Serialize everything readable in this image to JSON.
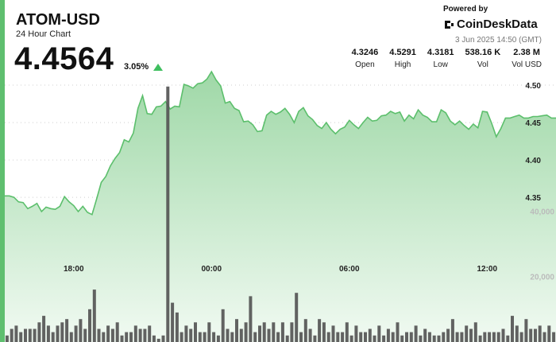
{
  "header": {
    "title": "ATOM-USD",
    "subtitle": "24 Hour Chart",
    "price": "4.4564",
    "change": "3.05%",
    "powered_by": "Powered by",
    "brand": "CoinDeskData",
    "timestamp": "3 Jun 2025 14:50 (GMT)"
  },
  "stats": [
    {
      "value": "4.3246",
      "label": "Open"
    },
    {
      "value": "4.5291",
      "label": "High"
    },
    {
      "value": "4.3181",
      "label": "Low"
    },
    {
      "value": "538.16 K",
      "label": "Vol"
    },
    {
      "value": "2.38 M",
      "label": "Vol USD"
    }
  ],
  "colors": {
    "accent": "#5fbf6f",
    "line": "#5cbf6c",
    "fill_top": "#9fd8a7",
    "fill_bottom": "#f1faf2",
    "volume": "#555555",
    "arrow": "#3fbf5f"
  },
  "chart_data": {
    "type": "area",
    "price_axis": {
      "ticks": [
        "4.50",
        "4.45",
        "4.40",
        "4.35"
      ],
      "tick_values": [
        4.5,
        4.45,
        4.4,
        4.35
      ],
      "ylim": [
        4.28,
        4.55
      ]
    },
    "volume_axis": {
      "ticks": [
        "40,000",
        "20,000"
      ],
      "tick_values": [
        40000,
        20000
      ],
      "ylim": [
        0,
        85000
      ]
    },
    "time_axis": {
      "ticks": [
        "18:00",
        "00:00",
        "06:00",
        "12:00"
      ],
      "tick_values": [
        3,
        9,
        15,
        21
      ],
      "xlim": [
        0,
        24
      ]
    },
    "grid": true,
    "series": [
      {
        "type": "area",
        "x": [
          0,
          0.2,
          0.4,
          0.6,
          0.8,
          1,
          1.2,
          1.4,
          1.6,
          1.8,
          2,
          2.2,
          2.4,
          2.6,
          2.8,
          3,
          3.2,
          3.4,
          3.6,
          3.8,
          4,
          4.2,
          4.4,
          4.6,
          4.8,
          5,
          5.2,
          5.4,
          5.6,
          5.8,
          6,
          6.2,
          6.4,
          6.6,
          6.8,
          7,
          7.2,
          7.4,
          7.6,
          7.8,
          8,
          8.2,
          8.4,
          8.6,
          8.8,
          9,
          9.2,
          9.4,
          9.6,
          9.8,
          10,
          10.2,
          10.4,
          10.6,
          10.8,
          11,
          11.2,
          11.4,
          11.6,
          11.8,
          12,
          12.2,
          12.4,
          12.6,
          12.8,
          13,
          13.2,
          13.4,
          13.6,
          13.8,
          14,
          14.2,
          14.4,
          14.6,
          14.8,
          15,
          15.2,
          15.4,
          15.6,
          15.8,
          16,
          16.2,
          16.4,
          16.6,
          16.8,
          17,
          17.2,
          17.4,
          17.6,
          17.8,
          18,
          18.2,
          18.4,
          18.6,
          18.8,
          19,
          19.2,
          19.4,
          19.6,
          19.8,
          20,
          20.2,
          20.4,
          20.6,
          20.8,
          21,
          21.2,
          21.4,
          21.6,
          21.8,
          22,
          22.2,
          22.4,
          22.6,
          22.8,
          23,
          23.2,
          23.4,
          23.6,
          23.8,
          24
        ],
        "y": [
          4.352,
          4.352,
          4.35,
          4.344,
          4.343,
          4.335,
          4.338,
          4.342,
          4.331,
          4.337,
          4.335,
          4.334,
          4.338,
          4.351,
          4.344,
          4.339,
          4.331,
          4.338,
          4.33,
          4.327,
          4.348,
          4.37,
          4.378,
          4.392,
          4.402,
          4.41,
          4.427,
          4.424,
          4.436,
          4.469,
          4.486,
          4.462,
          4.461,
          4.471,
          4.472,
          4.478,
          4.468,
          4.472,
          4.471,
          4.501,
          4.499,
          4.496,
          4.502,
          4.503,
          4.508,
          4.518,
          4.507,
          4.499,
          4.476,
          4.478,
          4.469,
          4.466,
          4.451,
          4.452,
          4.447,
          4.438,
          4.439,
          4.46,
          4.465,
          4.461,
          4.464,
          4.469,
          4.461,
          4.45,
          4.465,
          4.47,
          4.459,
          4.454,
          4.446,
          4.442,
          4.45,
          4.441,
          4.435,
          4.441,
          4.444,
          4.453,
          4.447,
          4.442,
          4.45,
          4.457,
          4.452,
          4.453,
          4.459,
          4.46,
          4.465,
          4.462,
          4.464,
          4.452,
          4.46,
          4.455,
          4.467,
          4.46,
          4.457,
          4.451,
          4.451,
          4.467,
          4.463,
          4.452,
          4.447,
          4.452,
          4.446,
          4.441,
          4.448,
          4.443,
          4.465,
          4.464,
          4.449,
          4.431,
          4.442,
          4.456,
          4.456,
          4.458,
          4.46,
          4.456,
          4.456,
          4.458,
          4.458,
          4.459,
          4.46,
          4.456,
          4.456
        ]
      },
      {
        "type": "bar",
        "x": [
          0,
          0.2,
          0.4,
          0.6,
          0.8,
          1,
          1.2,
          1.4,
          1.6,
          1.8,
          2,
          2.2,
          2.4,
          2.6,
          2.8,
          3,
          3.2,
          3.4,
          3.6,
          3.8,
          4,
          4.2,
          4.4,
          4.6,
          4.8,
          5,
          5.2,
          5.4,
          5.6,
          5.8,
          6,
          6.2,
          6.4,
          6.6,
          6.8,
          7,
          7.2,
          7.4,
          7.6,
          7.8,
          8,
          8.2,
          8.4,
          8.6,
          8.8,
          9,
          9.2,
          9.4,
          9.6,
          9.8,
          10,
          10.2,
          10.4,
          10.6,
          10.8,
          11,
          11.2,
          11.4,
          11.6,
          11.8,
          12,
          12.2,
          12.4,
          12.6,
          12.8,
          13,
          13.2,
          13.4,
          13.6,
          13.8,
          14,
          14.2,
          14.4,
          14.6,
          14.8,
          15,
          15.2,
          15.4,
          15.6,
          15.8,
          16,
          16.2,
          16.4,
          16.6,
          16.8,
          17,
          17.2,
          17.4,
          17.6,
          17.8,
          18,
          18.2,
          18.4,
          18.6,
          18.8,
          19,
          19.2,
          19.4,
          19.6,
          19.8,
          20,
          20.2,
          20.4,
          20.6,
          20.8,
          21,
          21.2,
          21.4,
          21.6,
          21.8,
          22,
          22.2,
          22.4,
          22.6,
          22.8,
          23,
          23.2,
          23.4,
          23.6,
          23.8
        ],
        "values": [
          2000,
          4000,
          5000,
          3000,
          4000,
          4000,
          4000,
          6000,
          8000,
          5000,
          3000,
          5000,
          6000,
          7000,
          3000,
          5000,
          7000,
          4000,
          10000,
          16000,
          4000,
          3000,
          5000,
          4000,
          6000,
          2000,
          3000,
          3000,
          5000,
          4000,
          4000,
          5000,
          2000,
          1000,
          2000,
          78000,
          12000,
          9000,
          3000,
          5000,
          4000,
          6000,
          3000,
          3000,
          6000,
          3000,
          2000,
          10000,
          4000,
          3000,
          7000,
          4000,
          6000,
          14000,
          3000,
          5000,
          6000,
          4000,
          6000,
          3000,
          6000,
          2000,
          6000,
          15000,
          3000,
          7000,
          4000,
          2000,
          7000,
          6000,
          3000,
          5000,
          3000,
          3000,
          6000,
          2000,
          5000,
          3000,
          3000,
          4000,
          2000,
          5000,
          2000,
          4000,
          3000,
          6000,
          2000,
          3000,
          3000,
          5000,
          2000,
          4000,
          3000,
          2000,
          2000,
          3000,
          4000,
          7000,
          3000,
          3000,
          5000,
          4000,
          6000,
          2000,
          3000,
          3000,
          3000,
          3000,
          4000,
          2000,
          8000,
          5000,
          3000,
          7000,
          4000,
          4000,
          5000,
          3000,
          5000,
          3000
        ]
      }
    ]
  }
}
